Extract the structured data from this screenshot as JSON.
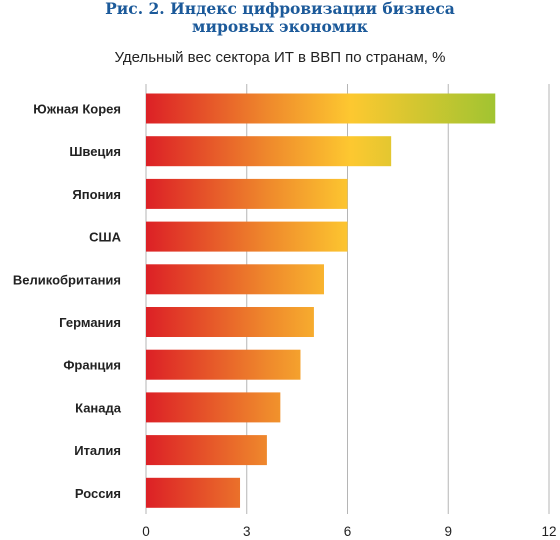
{
  "header": {
    "title_line1": "Рис. 2. Индекс цифровизации бизнеса",
    "title_line2": "мировых экономик"
  },
  "chart_data": {
    "type": "bar",
    "orientation": "horizontal",
    "title": "Рис. 2. Индекс цифровизации бизнеса мировых экономик",
    "subtitle": "Удельный вес сектора ИТ в ВВП по странам, %",
    "categories": [
      "Южная Корея",
      "Швеция",
      "Япония",
      "США",
      "Великобритания",
      "Германия",
      "Франция",
      "Канада",
      "Италия",
      "Россия"
    ],
    "values": [
      10.4,
      7.3,
      6.0,
      6.0,
      5.3,
      5.0,
      4.6,
      4.0,
      3.6,
      2.8
    ],
    "xlim": [
      0,
      12
    ],
    "xticks": [
      0,
      3,
      6,
      9,
      12
    ],
    "grid": true,
    "colors": {
      "gradient_start": "#dc1f26",
      "gradient_mid1": "#ef8a2c",
      "gradient_mid2": "#fdc830",
      "gradient_end": "#9ec431",
      "grid": "#b5b5b5",
      "title": "#1c5a9a"
    }
  }
}
